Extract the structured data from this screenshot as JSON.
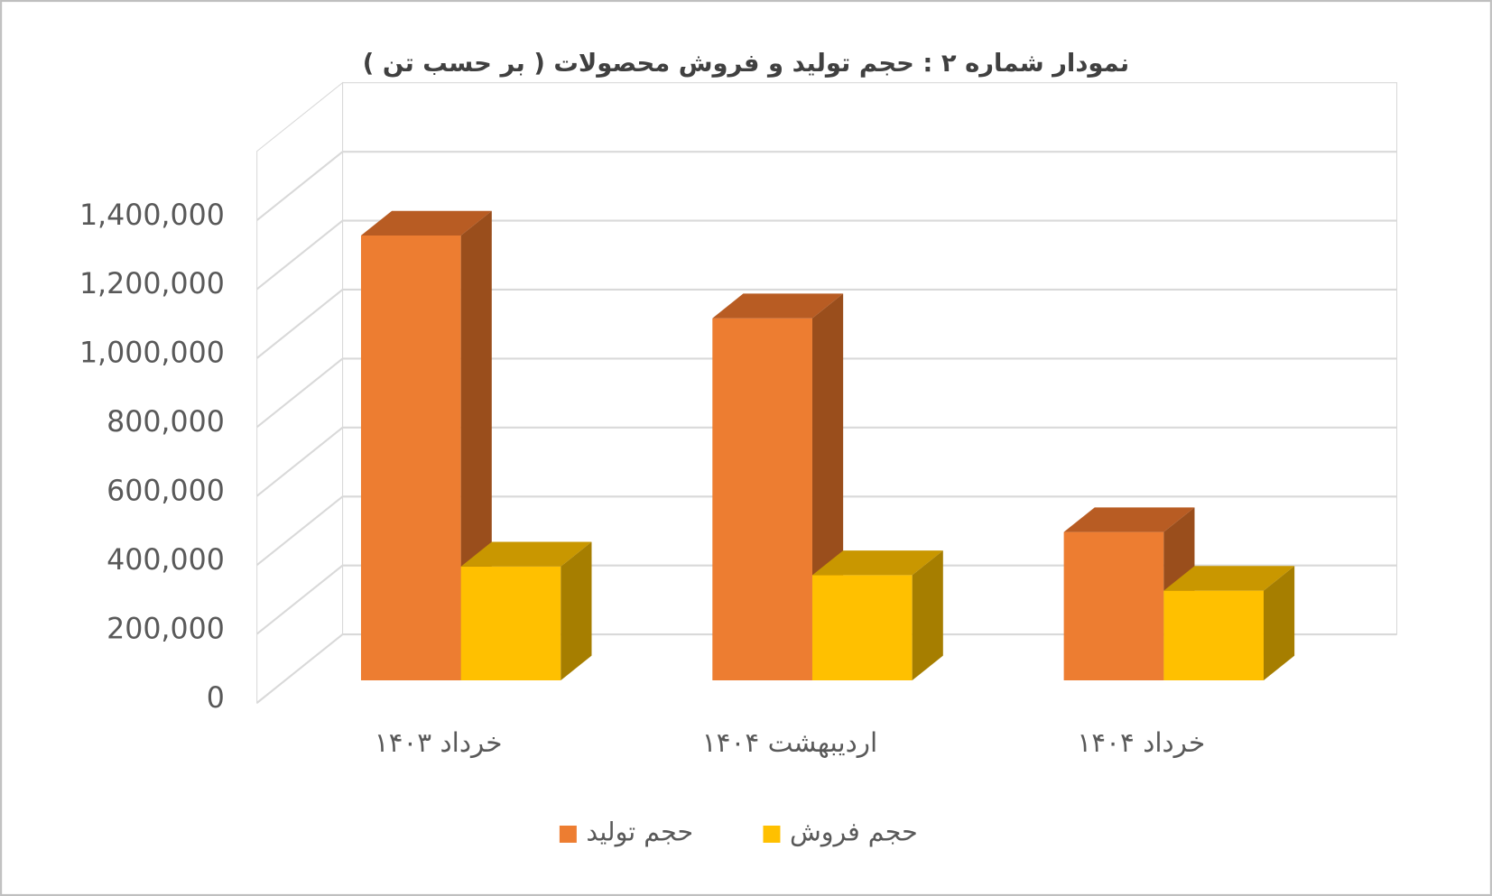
{
  "chart_data": {
    "type": "bar3d",
    "title": "نمودار شماره ۲ : حجم  تولید و فروش محصولات ( بر حسب تن )",
    "categories": [
      "خرداد ۱۴۰۳",
      "اردیبهشت ۱۴۰۴",
      "خرداد ۱۴۰۴"
    ],
    "series": [
      {
        "name": "حجم تولید",
        "color": "#ED7D31",
        "values": [
          1290000,
          1050000,
          430000
        ]
      },
      {
        "name": "حجم فروش",
        "color": "#FFC000",
        "values": [
          330000,
          305000,
          260000
        ]
      }
    ],
    "ylim": [
      0,
      1600000
    ],
    "yticks": [
      0,
      {
        "value": 200000,
        "label": "200,000"
      },
      {
        "value": 400000,
        "label": "400,000"
      },
      {
        "value": 600000,
        "label": "600,000"
      },
      {
        "value": 800000,
        "label": "800,000"
      },
      {
        "value": 1000000,
        "label": "1,000,000"
      },
      {
        "value": 1200000,
        "label": "1,200,000"
      },
      {
        "value": 1400000,
        "label": "1,400,000"
      }
    ],
    "grid": true
  }
}
